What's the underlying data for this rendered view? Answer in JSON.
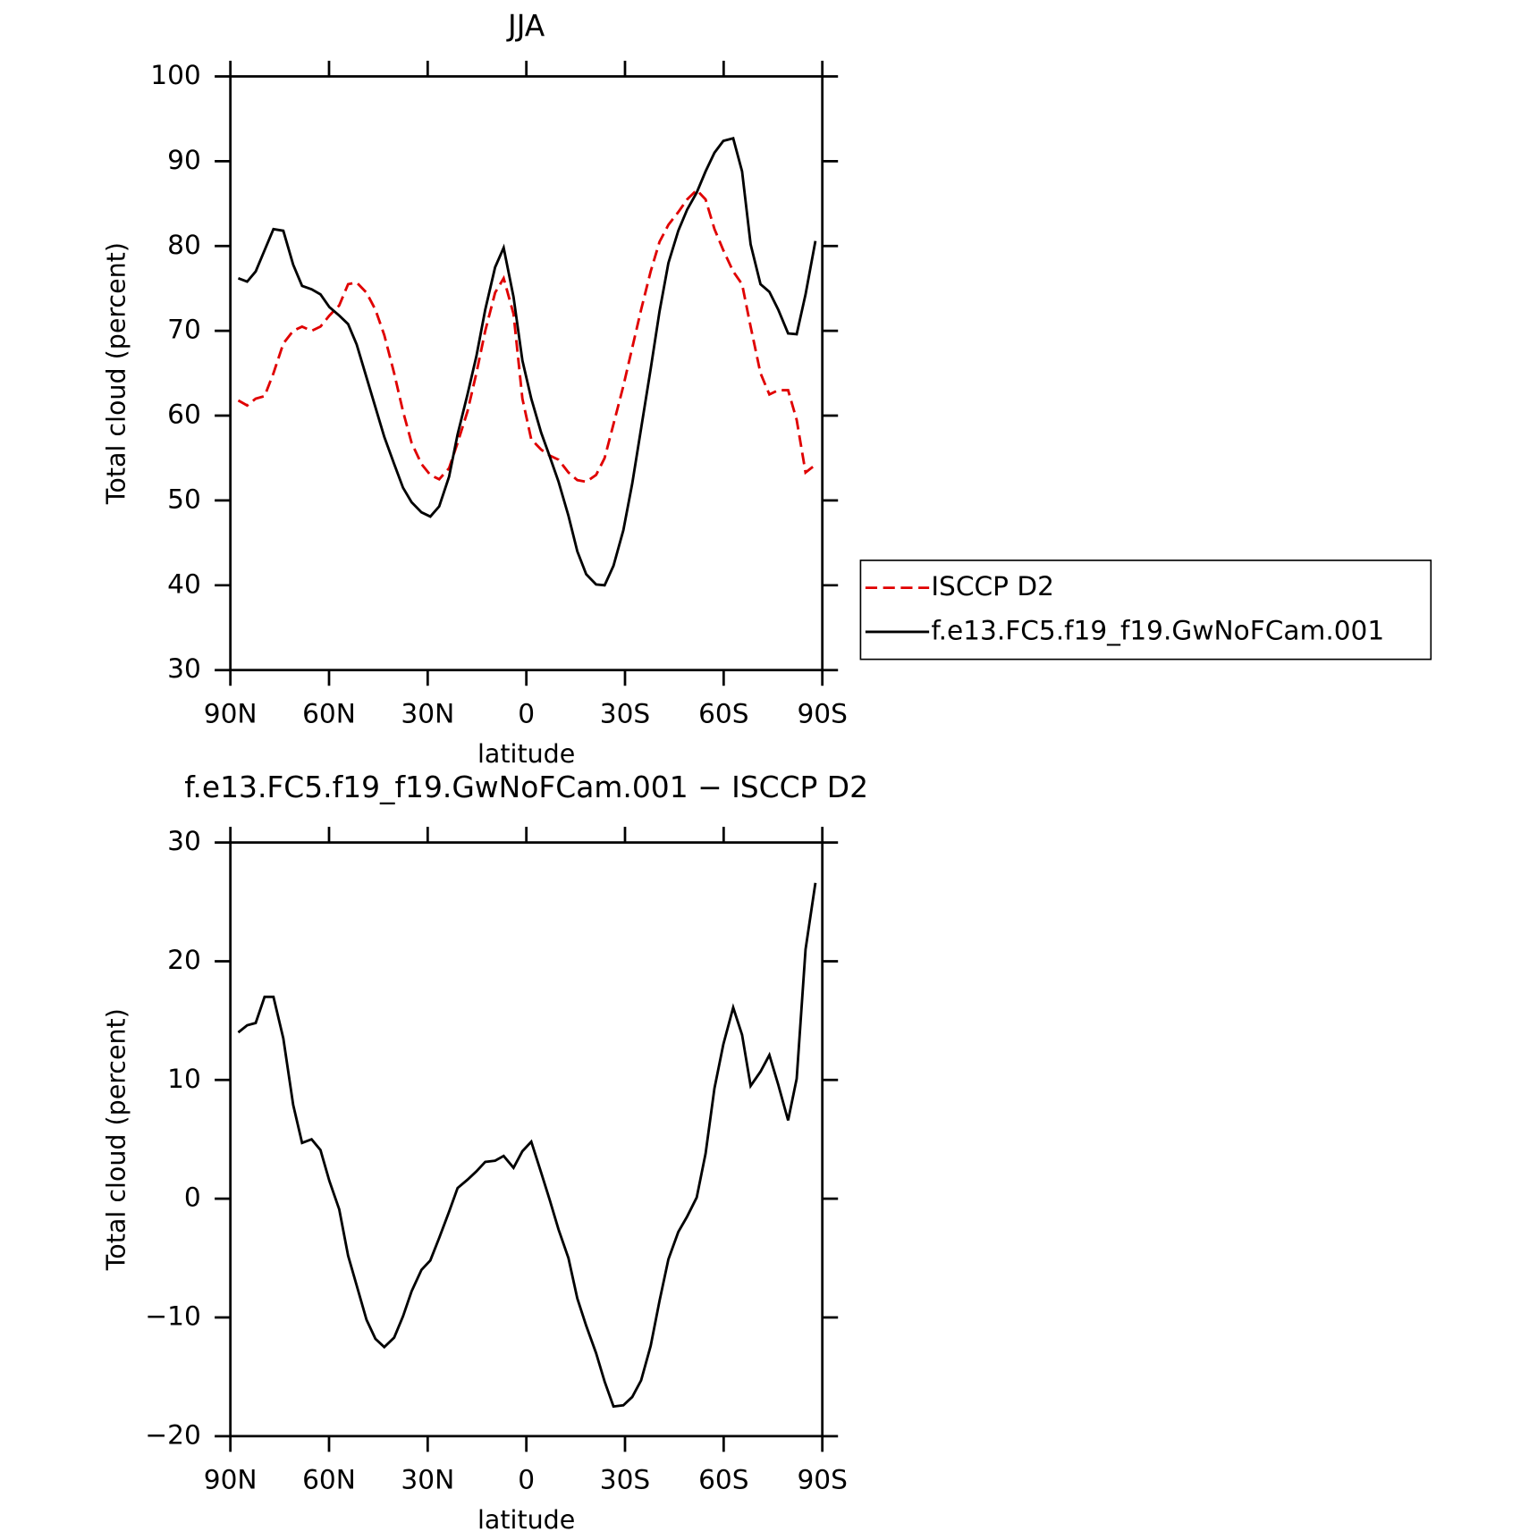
{
  "chart_data": [
    {
      "type": "line",
      "title": "JJA",
      "xlabel": "latitude",
      "ylabel": "Total cloud (percent)",
      "x": [
        87.6,
        84.9,
        82.3,
        79.6,
        76.9,
        73.9,
        70.9,
        68.2,
        65.3,
        62.6,
        59.9,
        56.9,
        54.2,
        51.6,
        48.6,
        45.9,
        43.2,
        40.2,
        37.5,
        34.9,
        31.9,
        29.2,
        26.5,
        23.5,
        20.9,
        17.9,
        15.2,
        12.5,
        9.5,
        6.9,
        3.9,
        1.2,
        -1.5,
        -4.5,
        -7.1,
        -9.8,
        -12.8,
        -15.5,
        -18.2,
        -21.2,
        -23.8,
        -26.5,
        -29.5,
        -32.2,
        -34.9,
        -37.8,
        -40.5,
        -43.2,
        -46.2,
        -48.9,
        -51.8,
        -54.5,
        -57.2,
        -59.9,
        -62.9,
        -65.6,
        -68.2,
        -71.2,
        -73.9,
        -76.6,
        -79.6,
        -82.2,
        -84.9,
        -87.9
      ],
      "xlim": [
        90,
        -90
      ],
      "xticks": [
        {
          "value": 90,
          "label": "90N"
        },
        {
          "value": 60,
          "label": "60N"
        },
        {
          "value": 30,
          "label": "30N"
        },
        0,
        {
          "value": -30,
          "label": "30S"
        },
        {
          "value": -60,
          "label": "60S"
        },
        {
          "value": -90,
          "label": "90S"
        }
      ],
      "ylim": [
        30,
        100
      ],
      "yticks": [
        30,
        40,
        50,
        60,
        70,
        80,
        90,
        100
      ],
      "legend": "right",
      "series": [
        {
          "name": "ISCCP D2",
          "color": "#e00000",
          "linestyle": "dashed",
          "values": [
            61.8,
            61.2,
            62,
            62.3,
            65,
            68.5,
            70,
            70.5,
            70,
            70.5,
            71.8,
            73,
            75.5,
            75.7,
            74.5,
            72.5,
            69.5,
            65,
            60.5,
            56.8,
            54.3,
            53,
            52.5,
            53.8,
            56.8,
            60.5,
            65,
            70,
            74.5,
            76.2,
            72,
            62,
            57.2,
            56,
            55.3,
            54.8,
            53.3,
            52.4,
            52.2,
            53,
            55,
            59,
            63.5,
            68,
            72.5,
            77,
            80.5,
            82.5,
            84,
            85.5,
            86.6,
            85.5,
            82,
            79.5,
            77,
            75.5,
            70.5,
            65,
            62.5,
            63,
            63,
            59.5,
            53.3,
            54.2
          ]
        },
        {
          "name": "f.e13.FC5.f19_f19.GwNoFCam.001",
          "color": "#000000",
          "linestyle": "solid",
          "values": [
            76.2,
            75.8,
            77,
            79.5,
            82,
            81.8,
            77.8,
            75.3,
            74.9,
            74.3,
            72.8,
            71.8,
            70.8,
            68.4,
            64.5,
            61,
            57.5,
            54.3,
            51.5,
            49.8,
            48.6,
            48.1,
            49.3,
            52.8,
            57.8,
            62.5,
            67,
            72.5,
            77.5,
            79.8,
            74,
            66.5,
            62,
            58,
            55.2,
            52.2,
            48.2,
            44,
            41.3,
            40.1,
            40,
            42.3,
            46.5,
            52,
            58.5,
            65.5,
            72.3,
            78,
            81.8,
            84.3,
            86.3,
            88.8,
            91,
            92.4,
            92.7,
            88.8,
            80.2,
            75.5,
            74.6,
            72.5,
            69.7,
            69.6,
            74.3,
            80.6
          ]
        }
      ]
    },
    {
      "type": "line",
      "title": "f.e13.FC5.f19_f19.GwNoFCam.001 − ISCCP D2",
      "xlabel": "latitude",
      "ylabel": "Total cloud (percent)",
      "x": [
        87.6,
        84.9,
        82.3,
        79.6,
        76.9,
        73.9,
        70.9,
        68.2,
        65.3,
        62.6,
        59.9,
        56.9,
        54.2,
        51.6,
        48.6,
        45.9,
        43.2,
        40.2,
        37.5,
        34.9,
        31.9,
        29.2,
        26.5,
        23.5,
        20.9,
        17.9,
        15.2,
        12.5,
        9.5,
        6.9,
        3.9,
        1.2,
        -1.5,
        -4.5,
        -7.1,
        -9.8,
        -12.8,
        -15.5,
        -18.2,
        -21.2,
        -23.8,
        -26.5,
        -29.5,
        -32.2,
        -34.9,
        -37.8,
        -40.5,
        -43.2,
        -46.2,
        -48.9,
        -51.8,
        -54.5,
        -57.2,
        -59.9,
        -62.9,
        -65.6,
        -68.2,
        -71.2,
        -73.9,
        -76.6,
        -79.6,
        -82.2,
        -84.9,
        -87.9
      ],
      "xlim": [
        90,
        -90
      ],
      "xticks": [
        {
          "value": 90,
          "label": "90N"
        },
        {
          "value": 60,
          "label": "60N"
        },
        {
          "value": 30,
          "label": "30N"
        },
        0,
        {
          "value": -30,
          "label": "30S"
        },
        {
          "value": -60,
          "label": "60S"
        },
        {
          "value": -90,
          "label": "90S"
        }
      ],
      "ylim": [
        -20,
        30
      ],
      "yticks": [
        {
          "value": -20,
          "label": "−20"
        },
        {
          "value": -10,
          "label": "−10"
        },
        0,
        10,
        20,
        30
      ],
      "series": [
        {
          "color": "#000000",
          "linestyle": "solid",
          "values": [
            14,
            14.6,
            14.8,
            17,
            17,
            13.5,
            7.9,
            4.7,
            5,
            4.1,
            1.5,
            -0.9,
            -4.8,
            -7.3,
            -10.2,
            -11.8,
            -12.5,
            -11.7,
            -9.9,
            -7.8,
            -6,
            -5.2,
            -3.3,
            -1.1,
            0.9,
            1.6,
            2.3,
            3.1,
            3.2,
            3.6,
            2.6,
            4,
            4.8,
            2.2,
            -0.1,
            -2.6,
            -5,
            -8.4,
            -10.7,
            -13,
            -15.4,
            -17.5,
            -17.4,
            -16.7,
            -15.3,
            -12.4,
            -8.6,
            -5.1,
            -2.8,
            -1.5,
            0.1,
            3.8,
            9.3,
            13,
            16.1,
            13.8,
            9.5,
            10.7,
            12.1,
            9.6,
            6.6,
            10.1,
            21,
            26.6
          ]
        }
      ]
    }
  ]
}
